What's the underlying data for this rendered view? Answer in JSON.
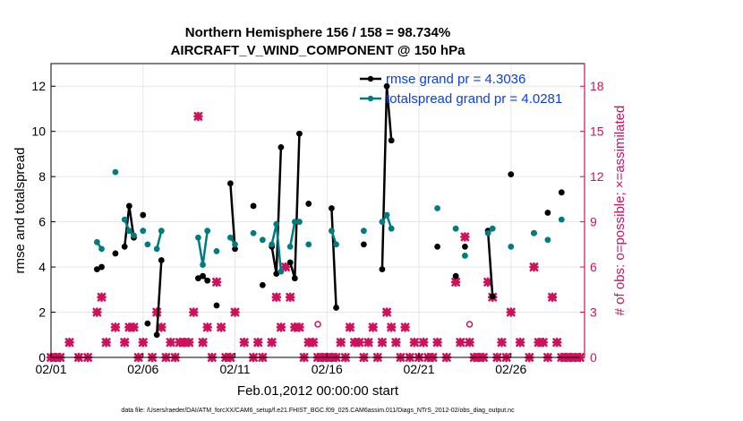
{
  "chart_data": {
    "type": "line",
    "title": "Northern Hemisphere 156 / 158 = 98.734%",
    "subtitle": "AIRCRAFT_V_WIND_COMPONENT @ 150 hPa",
    "xlabel": "Feb.01,2012 00:00:00 start",
    "ylabel": "rmse and totalspread",
    "ylabel_right": "# of obs: o=possible; ×=assimilated",
    "xlim": [
      0,
      29
    ],
    "ylim": [
      0,
      13
    ],
    "ylim_right": [
      0,
      19.5
    ],
    "x_ticks": [
      0,
      5,
      10,
      15,
      20,
      25
    ],
    "x_tick_labels": [
      "02/01",
      "02/06",
      "02/11",
      "02/16",
      "02/21",
      "02/26"
    ],
    "y_ticks": [
      0,
      2,
      4,
      6,
      8,
      10,
      12
    ],
    "y_tick_labels": [
      "0",
      "2",
      "4",
      "6",
      "8",
      "10",
      "12"
    ],
    "y_ticks_right": [
      0,
      3,
      6,
      9,
      12,
      15,
      18
    ],
    "y_tick_labels_right": [
      "0",
      "3",
      "6",
      "9",
      "12",
      "15",
      "18"
    ],
    "grid": true,
    "legend_position": "top-right",
    "series": [
      {
        "name": "rmse grand pr = 4.3036",
        "color": "#000000",
        "segments": [
          [
            [
              2.5,
              3.9
            ],
            [
              2.75,
              4.0
            ]
          ],
          [
            [
              3.5,
              4.6
            ]
          ],
          [
            [
              4.0,
              4.9
            ],
            [
              4.25,
              6.7
            ],
            [
              4.5,
              5.3
            ]
          ],
          [
            [
              5.0,
              6.3
            ]
          ],
          [
            [
              5.75,
              1.0
            ],
            [
              6.0,
              4.3
            ]
          ],
          [
            [
              5.25,
              1.5
            ]
          ],
          [
            [
              8.0,
              3.5
            ],
            [
              8.25,
              3.6
            ],
            [
              8.5,
              3.4
            ]
          ],
          [
            [
              9.0,
              2.3
            ]
          ],
          [
            [
              9.75,
              7.7
            ],
            [
              10.0,
              4.8
            ]
          ],
          [
            [
              11.0,
              6.7
            ]
          ],
          [
            [
              11.5,
              3.2
            ]
          ],
          [
            [
              12.0,
              4.9
            ],
            [
              12.25,
              3.7
            ],
            [
              12.5,
              9.3
            ]
          ],
          [
            [
              13.0,
              4.2
            ],
            [
              13.25,
              3.5
            ],
            [
              13.5,
              9.9
            ]
          ],
          [
            [
              14.0,
              6.8
            ]
          ],
          [
            [
              15.25,
              6.6
            ],
            [
              15.5,
              2.2
            ]
          ],
          [
            [
              17.0,
              5.0
            ]
          ],
          [
            [
              18.0,
              3.9
            ],
            [
              18.25,
              12.0
            ],
            [
              18.5,
              9.6
            ]
          ],
          [
            [
              21.0,
              4.9
            ]
          ],
          [
            [
              22.0,
              3.6
            ]
          ],
          [
            [
              22.5,
              4.9
            ]
          ],
          [
            [
              23.75,
              5.6
            ],
            [
              24.0,
              2.7
            ]
          ],
          [
            [
              25.0,
              8.1
            ]
          ],
          [
            [
              26.25,
              5.5
            ]
          ],
          [
            [
              27.0,
              6.4
            ]
          ],
          [
            [
              27.75,
              7.3
            ]
          ]
        ]
      },
      {
        "name": "totalspread grand pr = 4.0281",
        "color": "#007c80",
        "segments": [
          [
            [
              2.5,
              5.1
            ],
            [
              2.75,
              4.8
            ]
          ],
          [
            [
              3.5,
              8.2
            ]
          ],
          [
            [
              4.0,
              6.1
            ],
            [
              4.25,
              5.6
            ],
            [
              4.5,
              5.4
            ]
          ],
          [
            [
              5.0,
              5.6
            ]
          ],
          [
            [
              5.75,
              4.8
            ],
            [
              6.0,
              5.6
            ]
          ],
          [
            [
              5.25,
              5.0
            ]
          ],
          [
            [
              8.0,
              5.3
            ],
            [
              8.25,
              4.1
            ],
            [
              8.5,
              5.6
            ]
          ],
          [
            [
              9.0,
              4.7
            ]
          ],
          [
            [
              9.75,
              5.3
            ],
            [
              10.0,
              5.0
            ]
          ],
          [
            [
              11.0,
              5.5
            ]
          ],
          [
            [
              11.5,
              5.2
            ]
          ],
          [
            [
              12.0,
              5.0
            ],
            [
              12.25,
              5.9
            ],
            [
              12.5,
              3.8
            ]
          ],
          [
            [
              13.0,
              4.9
            ],
            [
              13.25,
              6.0
            ],
            [
              13.5,
              6.0
            ]
          ],
          [
            [
              14.0,
              5.0
            ]
          ],
          [
            [
              15.25,
              5.6
            ],
            [
              15.5,
              5.0
            ]
          ],
          [
            [
              17.0,
              5.6
            ]
          ],
          [
            [
              18.0,
              6.0
            ],
            [
              18.25,
              6.3
            ],
            [
              18.5,
              5.7
            ]
          ],
          [
            [
              21.0,
              6.6
            ]
          ],
          [
            [
              22.0,
              5.7
            ]
          ],
          [
            [
              22.5,
              4.5
            ]
          ],
          [
            [
              23.75,
              5.5
            ],
            [
              24.0,
              5.7
            ]
          ],
          [
            [
              25.0,
              4.9
            ]
          ],
          [
            [
              26.25,
              5.5
            ]
          ],
          [
            [
              27.0,
              5.2
            ]
          ],
          [
            [
              27.75,
              6.1
            ]
          ]
        ]
      }
    ],
    "obs_assimilated": {
      "name": "# of obs assimilated",
      "color": "#d0105a",
      "points": [
        [
          0.0,
          0
        ],
        [
          0.25,
          0
        ],
        [
          0.5,
          0
        ],
        [
          1.0,
          1
        ],
        [
          1.5,
          0
        ],
        [
          2.0,
          0
        ],
        [
          2.5,
          3
        ],
        [
          2.75,
          4
        ],
        [
          3.0,
          1
        ],
        [
          3.5,
          2
        ],
        [
          4.0,
          1
        ],
        [
          4.25,
          2
        ],
        [
          4.5,
          2
        ],
        [
          4.75,
          0
        ],
        [
          5.0,
          1
        ],
        [
          5.5,
          0
        ],
        [
          5.75,
          3
        ],
        [
          6.0,
          2
        ],
        [
          6.25,
          0
        ],
        [
          6.5,
          1
        ],
        [
          6.75,
          0
        ],
        [
          7.0,
          1
        ],
        [
          7.25,
          1
        ],
        [
          7.5,
          1
        ],
        [
          7.75,
          3
        ],
        [
          8.0,
          16
        ],
        [
          8.25,
          1
        ],
        [
          8.5,
          2
        ],
        [
          8.75,
          0
        ],
        [
          9.0,
          5
        ],
        [
          9.25,
          2
        ],
        [
          9.5,
          0
        ],
        [
          9.75,
          0
        ],
        [
          10.0,
          3
        ],
        [
          10.5,
          1
        ],
        [
          11.0,
          0
        ],
        [
          11.25,
          1
        ],
        [
          11.5,
          0
        ],
        [
          12.0,
          1
        ],
        [
          12.25,
          4
        ],
        [
          12.5,
          2
        ],
        [
          12.75,
          6
        ],
        [
          13.0,
          4
        ],
        [
          13.25,
          2
        ],
        [
          13.5,
          2
        ],
        [
          13.75,
          0
        ],
        [
          14.0,
          1
        ],
        [
          14.25,
          1
        ],
        [
          14.5,
          0
        ],
        [
          14.75,
          0
        ],
        [
          15.0,
          0
        ],
        [
          15.25,
          0
        ],
        [
          15.5,
          0
        ],
        [
          15.75,
          1
        ],
        [
          16.0,
          0
        ],
        [
          16.25,
          2
        ],
        [
          16.5,
          1
        ],
        [
          16.75,
          1
        ],
        [
          17.0,
          0
        ],
        [
          17.25,
          1
        ],
        [
          17.5,
          2
        ],
        [
          17.75,
          0
        ],
        [
          18.0,
          1
        ],
        [
          18.25,
          3
        ],
        [
          18.5,
          2
        ],
        [
          18.75,
          1
        ],
        [
          19.0,
          0
        ],
        [
          19.25,
          2
        ],
        [
          19.5,
          0
        ],
        [
          19.75,
          1
        ],
        [
          20.0,
          0
        ],
        [
          20.25,
          1
        ],
        [
          20.5,
          0
        ],
        [
          20.75,
          0
        ],
        [
          21.0,
          1
        ],
        [
          21.5,
          0
        ],
        [
          22.0,
          5
        ],
        [
          22.25,
          1
        ],
        [
          22.5,
          8
        ],
        [
          22.75,
          1
        ],
        [
          23.0,
          0
        ],
        [
          23.25,
          0
        ],
        [
          23.5,
          0
        ],
        [
          23.75,
          5
        ],
        [
          24.0,
          4
        ],
        [
          24.25,
          0
        ],
        [
          24.5,
          1
        ],
        [
          24.75,
          0
        ],
        [
          25.0,
          3
        ],
        [
          25.5,
          1
        ],
        [
          26.0,
          0
        ],
        [
          26.25,
          6
        ],
        [
          26.5,
          1
        ],
        [
          26.75,
          1
        ],
        [
          27.0,
          0
        ],
        [
          27.25,
          4
        ],
        [
          27.5,
          1
        ],
        [
          27.75,
          0
        ],
        [
          28.0,
          0
        ],
        [
          28.25,
          0
        ],
        [
          28.5,
          0
        ],
        [
          28.75,
          0
        ]
      ]
    },
    "obs_possible": {
      "name": "# of obs possible",
      "color": "#d0105a",
      "points": [
        [
          12.75,
          6.0
        ],
        [
          14.5,
          2.2
        ],
        [
          22.75,
          2.2
        ]
      ]
    },
    "footnote": "data file: /Users/raeder/DAI/ATM_forcXX/CAM6_setup/f.e21.FHIST_BGC.f09_025.CAM6assim.011/Diags_NTrS_2012-02/obs_diag_output.nc"
  }
}
